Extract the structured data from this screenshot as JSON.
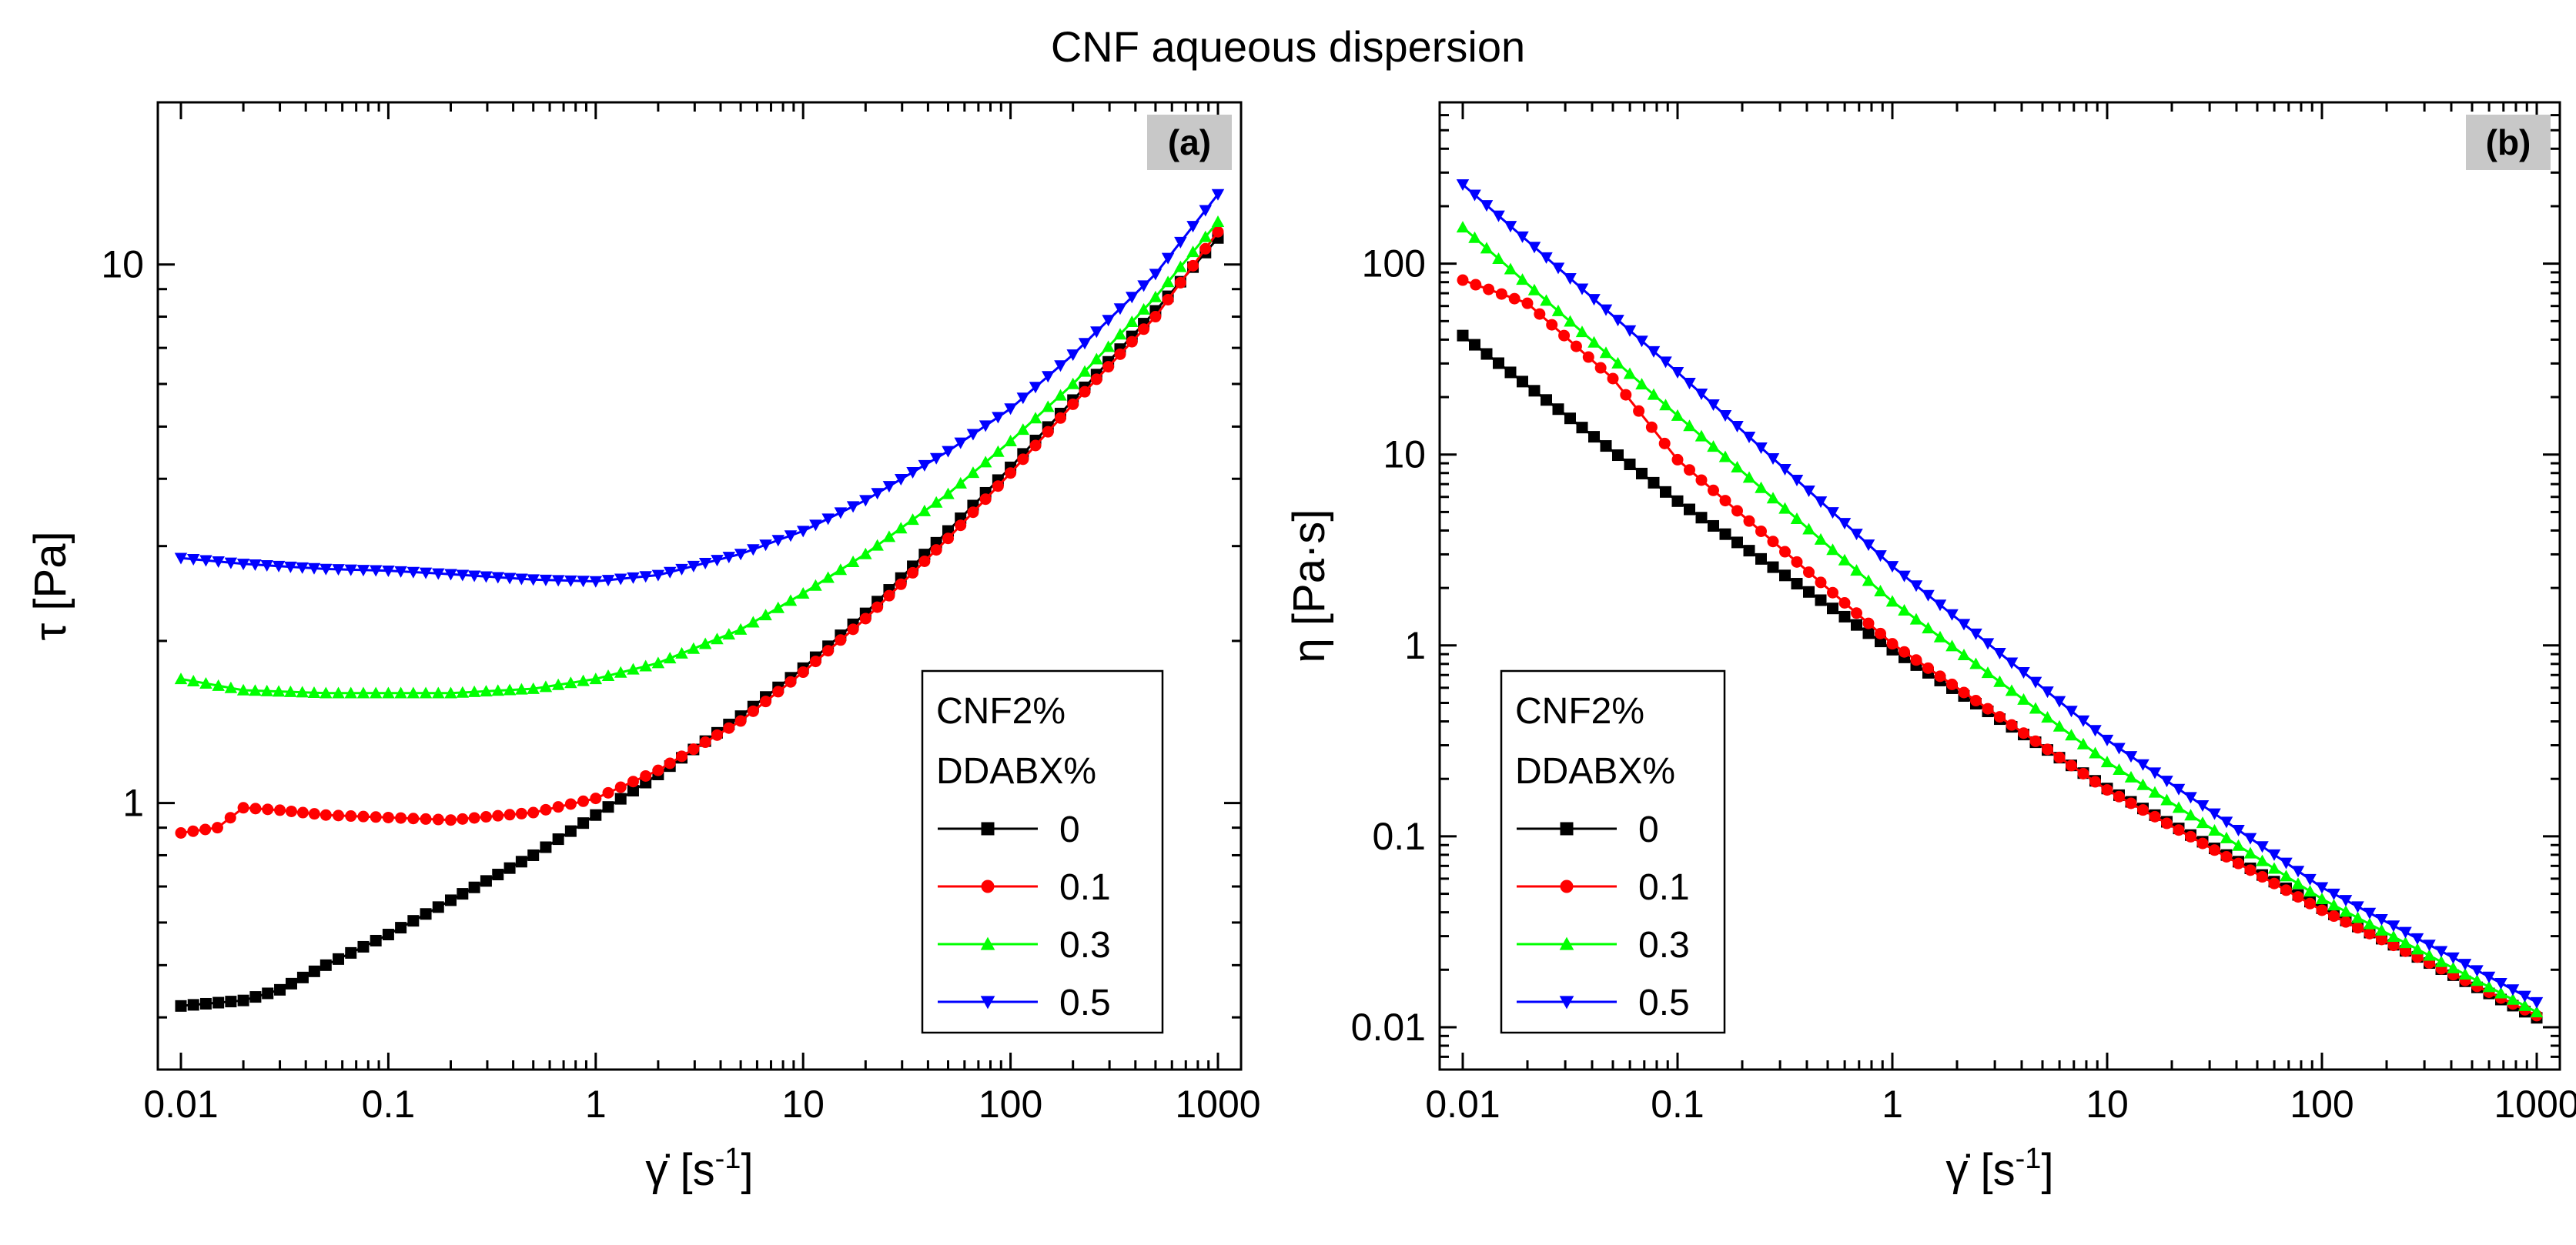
{
  "figure_title": "CNF aqueous dispersion",
  "chart_data": [
    {
      "type": "line",
      "panel_label": "(a)",
      "title": "",
      "xlabel_symbol": "γ̇",
      "xlabel_unit": "[s",
      "xlabel_exp": "-1",
      "xlabel_close": "]",
      "ylabel": "τ [Pa]",
      "xscale": "log",
      "yscale": "log",
      "xlim": [
        0.01,
        1000
      ],
      "ylim": [
        0.32,
        20
      ],
      "xticks": [
        0.01,
        0.1,
        1,
        10,
        100,
        1000
      ],
      "xtick_labels": [
        "0.01",
        "0.1",
        "1",
        "10",
        "100",
        "1000"
      ],
      "yticks": [
        1,
        10
      ],
      "ytick_labels": [
        "1",
        "10"
      ],
      "legend": {
        "position": "lower-right",
        "title_lines": [
          "CNF2%",
          "DDABX%"
        ]
      },
      "series": [
        {
          "name": "0",
          "color": "#000000",
          "marker": "square",
          "points": [
            [
              0.01,
              0.42
            ],
            [
              0.02,
              0.43
            ],
            [
              0.03,
              0.45
            ],
            [
              0.05,
              0.5
            ],
            [
              0.1,
              0.57
            ],
            [
              0.2,
              0.66
            ],
            [
              0.5,
              0.8
            ],
            [
              1,
              0.95
            ],
            [
              2,
              1.13
            ],
            [
              5,
              1.45
            ],
            [
              10,
              1.78
            ],
            [
              20,
              2.25
            ],
            [
              50,
              3.2
            ],
            [
              100,
              4.2
            ],
            [
              200,
              5.6
            ],
            [
              500,
              8.2
            ],
            [
              1000,
              11.2
            ]
          ]
        },
        {
          "name": "0.1",
          "color": "#ff0000",
          "marker": "circle",
          "points": [
            [
              0.01,
              0.88
            ],
            [
              0.015,
              0.9
            ],
            [
              0.02,
              0.98
            ],
            [
              0.03,
              0.97
            ],
            [
              0.05,
              0.95
            ],
            [
              0.1,
              0.94
            ],
            [
              0.2,
              0.93
            ],
            [
              0.5,
              0.96
            ],
            [
              1,
              1.02
            ],
            [
              2,
              1.15
            ],
            [
              5,
              1.42
            ],
            [
              10,
              1.75
            ],
            [
              20,
              2.2
            ],
            [
              50,
              3.1
            ],
            [
              100,
              4.1
            ],
            [
              200,
              5.5
            ],
            [
              500,
              8.0
            ],
            [
              1000,
              11.5
            ]
          ]
        },
        {
          "name": "0.3",
          "color": "#00ff00",
          "marker": "triangle-up",
          "points": [
            [
              0.01,
              1.7
            ],
            [
              0.02,
              1.62
            ],
            [
              0.05,
              1.6
            ],
            [
              0.1,
              1.6
            ],
            [
              0.2,
              1.6
            ],
            [
              0.5,
              1.63
            ],
            [
              1,
              1.7
            ],
            [
              2,
              1.82
            ],
            [
              5,
              2.1
            ],
            [
              10,
              2.45
            ],
            [
              20,
              2.9
            ],
            [
              50,
              3.75
            ],
            [
              100,
              4.7
            ],
            [
              200,
              6.0
            ],
            [
              500,
              8.7
            ],
            [
              1000,
              12.0
            ]
          ]
        },
        {
          "name": "0.5",
          "color": "#0000ff",
          "marker": "triangle-down",
          "points": [
            [
              0.01,
              2.85
            ],
            [
              0.02,
              2.78
            ],
            [
              0.05,
              2.72
            ],
            [
              0.1,
              2.7
            ],
            [
              0.2,
              2.66
            ],
            [
              0.5,
              2.6
            ],
            [
              1,
              2.58
            ],
            [
              2,
              2.65
            ],
            [
              5,
              2.9
            ],
            [
              10,
              3.2
            ],
            [
              20,
              3.65
            ],
            [
              50,
              4.5
            ],
            [
              100,
              5.4
            ],
            [
              200,
              6.8
            ],
            [
              500,
              9.6
            ],
            [
              1000,
              13.5
            ]
          ]
        }
      ]
    },
    {
      "type": "line",
      "panel_label": "(b)",
      "title": "",
      "xlabel_symbol": "γ̇",
      "xlabel_unit": "[s",
      "xlabel_exp": "-1",
      "xlabel_close": "]",
      "ylabel": "η [Pa·s]",
      "xscale": "log",
      "yscale": "log",
      "xlim": [
        0.01,
        1000
      ],
      "ylim": [
        0.006,
        700
      ],
      "xticks": [
        0.01,
        0.1,
        1,
        10,
        100,
        1000
      ],
      "xtick_labels": [
        "0.01",
        "0.1",
        "1",
        "10",
        "100",
        "1000"
      ],
      "yticks": [
        0.01,
        0.1,
        1,
        10,
        100
      ],
      "ytick_labels": [
        "0.01",
        "0.1",
        "1",
        "10",
        "100"
      ],
      "legend": {
        "position": "lower-left",
        "title_lines": [
          "CNF2%",
          "DDABX%"
        ]
      },
      "series": [
        {
          "name": "0",
          "color": "#000000",
          "marker": "square",
          "points": [
            [
              0.01,
              42
            ],
            [
              0.1,
              5.7
            ],
            [
              1,
              0.95
            ],
            [
              10,
              0.178
            ],
            [
              100,
              0.042
            ],
            [
              1000,
              0.0112
            ]
          ]
        },
        {
          "name": "0.1",
          "color": "#ff0000",
          "marker": "circle",
          "points": [
            [
              0.01,
              82
            ],
            [
              0.02,
              62
            ],
            [
              0.05,
              25
            ],
            [
              0.1,
              9.4
            ],
            [
              1,
              1.02
            ],
            [
              10,
              0.175
            ],
            [
              100,
              0.041
            ],
            [
              1000,
              0.0115
            ]
          ]
        },
        {
          "name": "0.3",
          "color": "#00ff00",
          "marker": "triangle-up",
          "points": [
            [
              0.01,
              155
            ],
            [
              0.1,
              16
            ],
            [
              1,
              1.7
            ],
            [
              10,
              0.245
            ],
            [
              100,
              0.047
            ],
            [
              1000,
              0.012
            ]
          ]
        },
        {
          "name": "0.5",
          "color": "#0000ff",
          "marker": "triangle-down",
          "points": [
            [
              0.01,
              260
            ],
            [
              0.1,
              27
            ],
            [
              1,
              2.6
            ],
            [
              10,
              0.32
            ],
            [
              100,
              0.054
            ],
            [
              1000,
              0.0135
            ]
          ]
        }
      ]
    }
  ]
}
